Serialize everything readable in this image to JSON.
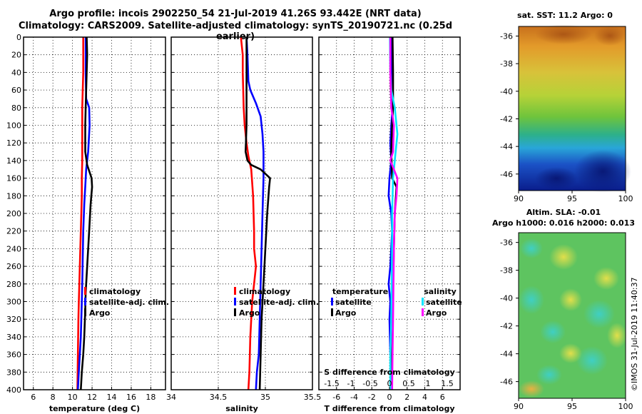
{
  "title_line1": "Argo profile: incois 2902250_54 21-Jul-2019 41.26S 93.442E (NRT data)",
  "title_line2": "Climatology: CARS2009. Satellite-adjusted climatology: synTS_20190721.nc (0.25d earlier)",
  "timestamp_label": "©IMOS 31-Jul-2019 11:40:37",
  "colors": {
    "climatology": "#ff0000",
    "satellite": "#0000ff",
    "argo": "#000000",
    "sal_satellite": "#00e5ff",
    "sal_argo": "#ff00ff"
  },
  "chart_data": [
    {
      "name": "temperature",
      "type": "line",
      "xlabel": "temperature (deg C)",
      "ylabel": "",
      "xlim": [
        5,
        19.5
      ],
      "ylim": [
        400,
        0
      ],
      "xticks": [
        6,
        8,
        10,
        12,
        14,
        16,
        18
      ],
      "xticklabels": [
        "6",
        "8",
        "10",
        "12",
        "14",
        "16",
        "18"
      ],
      "yticks": [
        0,
        20,
        40,
        60,
        80,
        100,
        120,
        140,
        160,
        180,
        200,
        220,
        240,
        260,
        280,
        300,
        320,
        340,
        360,
        380,
        400
      ],
      "yticklabels": [
        "0",
        "20",
        "40",
        "60",
        "80",
        "100",
        "120",
        "140",
        "160",
        "180",
        "200",
        "220",
        "240",
        "260",
        "280",
        "300",
        "320",
        "340",
        "360",
        "380",
        "400"
      ],
      "grid": true,
      "legend": [
        "climatology",
        "satellite-adj. clim.",
        "Argo"
      ],
      "series": [
        {
          "name": "climatology",
          "color": "#ff0000",
          "x": [
            11.1,
            11.1,
            11.0,
            11.0,
            11.0,
            11.0,
            10.95,
            10.95,
            10.9,
            10.85,
            10.8,
            10.75,
            10.7,
            10.65,
            10.6,
            10.55,
            10.5
          ],
          "y": [
            0,
            40,
            80,
            100,
            120,
            140,
            160,
            180,
            200,
            220,
            240,
            260,
            280,
            300,
            320,
            360,
            400
          ]
        },
        {
          "name": "satellite-adj. clim.",
          "color": "#0000ff",
          "x": [
            11.35,
            11.35,
            11.4,
            11.7,
            11.75,
            11.6,
            11.4,
            11.3,
            11.2,
            11.1,
            11.05,
            11.0,
            10.95,
            10.9,
            10.85,
            10.75,
            10.65,
            10.55
          ],
          "y": [
            0,
            40,
            70,
            80,
            100,
            130,
            150,
            170,
            190,
            220,
            250,
            280,
            300,
            320,
            340,
            360,
            380,
            400
          ]
        },
        {
          "name": "Argo",
          "color": "#000000",
          "x": [
            11.45,
            11.5,
            11.45,
            11.4,
            11.35,
            11.3,
            11.3,
            11.5,
            11.95,
            12.0,
            11.85,
            11.7,
            11.55,
            11.45,
            11.35,
            11.3,
            11.2,
            11.1,
            10.95,
            10.85
          ],
          "y": [
            0,
            20,
            40,
            60,
            80,
            100,
            130,
            145,
            160,
            170,
            190,
            220,
            250,
            270,
            290,
            310,
            340,
            360,
            380,
            400
          ]
        }
      ]
    },
    {
      "name": "salinity",
      "type": "line",
      "xlabel": "salinity",
      "ylabel": "",
      "xlim": [
        34,
        35.5
      ],
      "ylim": [
        400,
        0
      ],
      "xticks": [
        34,
        34.5,
        35,
        35.5
      ],
      "xticklabels": [
        "34",
        "34.5",
        "35",
        "35.5"
      ],
      "grid": true,
      "legend": [
        "climatology",
        "satellite-adj. clim.",
        "Argo"
      ],
      "series": [
        {
          "name": "climatology",
          "color": "#ff0000",
          "x": [
            34.74,
            34.76,
            34.76,
            34.77,
            34.78,
            34.8,
            34.82,
            34.85,
            34.87,
            34.88,
            34.88,
            34.9,
            34.88,
            34.86,
            34.84,
            34.83,
            34.82
          ],
          "y": [
            0,
            20,
            40,
            80,
            100,
            120,
            135,
            150,
            180,
            220,
            240,
            260,
            280,
            300,
            340,
            380,
            400
          ]
        },
        {
          "name": "satellite-adj. clim.",
          "color": "#0000ff",
          "x": [
            34.8,
            34.81,
            34.82,
            34.84,
            34.9,
            34.95,
            34.97,
            34.98,
            34.98,
            34.97,
            34.96,
            34.95,
            34.94,
            34.93,
            34.91,
            34.9
          ],
          "y": [
            0,
            20,
            50,
            60,
            75,
            90,
            110,
            130,
            160,
            200,
            240,
            280,
            320,
            360,
            380,
            400
          ]
        },
        {
          "name": "Argo",
          "color": "#000000",
          "x": [
            34.8,
            34.8,
            34.8,
            34.8,
            34.79,
            34.81,
            34.85,
            34.95,
            35.05,
            35.04,
            35.02,
            35.0,
            34.98,
            34.96,
            34.95,
            34.94
          ],
          "y": [
            0,
            40,
            80,
            100,
            130,
            140,
            145,
            150,
            160,
            170,
            200,
            240,
            280,
            320,
            360,
            400
          ]
        }
      ]
    },
    {
      "name": "difference",
      "type": "line",
      "xlabel": "T difference from climatology",
      "xlabel_top": "S difference from climatology",
      "xlim": [
        -8,
        8
      ],
      "ylim": [
        400,
        0
      ],
      "xticks": [
        -6,
        -4,
        -2,
        0,
        2,
        4,
        6
      ],
      "xticklabels": [
        "-6",
        "-4",
        "-2",
        "0",
        "2",
        "4",
        "6"
      ],
      "sticks": [
        -1.5,
        -1,
        -0.5,
        0,
        0.5,
        1,
        1.5
      ],
      "sticklabels": [
        "-1.5",
        "-1",
        "-0.5",
        "0",
        "0.5",
        "1",
        "1.5"
      ],
      "grid": true,
      "legend_temperature_title": "temperature",
      "legend_temperature": [
        "satellite",
        "Argo"
      ],
      "legend_salinity_title": "salinity",
      "legend_salinity": [
        "satellite",
        "Argo"
      ],
      "series": [
        {
          "name": "T satellite",
          "color": "#0000ff",
          "x": [
            0.3,
            0.3,
            0.35,
            0.2,
            0.1,
            0.2,
            0.0,
            -0.1,
            0.2,
            0.3,
            0.1,
            -0.1,
            0.1,
            0.0,
            0.1,
            0.2,
            0.2
          ],
          "y": [
            0,
            40,
            80,
            100,
            120,
            140,
            160,
            180,
            200,
            220,
            260,
            280,
            300,
            320,
            360,
            380,
            400
          ]
        },
        {
          "name": "T Argo",
          "color": "#000000",
          "x": [
            0.35,
            0.4,
            0.4,
            0.3,
            0.2,
            0.25,
            0.3,
            0.8,
            0.6,
            0.5,
            0.4,
            0.35,
            0.3,
            0.3,
            0.3
          ],
          "y": [
            0,
            40,
            80,
            100,
            130,
            145,
            160,
            170,
            200,
            240,
            280,
            320,
            360,
            380,
            400
          ]
        },
        {
          "name": "S satellite",
          "color": "#00e5ff",
          "x": [
            0.05,
            0.1,
            0.2,
            0.6,
            0.9,
            0.6,
            0.4,
            0.3,
            0.3,
            0.25,
            0.2,
            0.15,
            0.1,
            0.1,
            0.1
          ],
          "y": [
            0,
            40,
            60,
            80,
            110,
            140,
            160,
            200,
            240,
            280,
            320,
            340,
            360,
            380,
            400
          ]
        },
        {
          "name": "S Argo",
          "color": "#ff00ff",
          "x": [
            0.1,
            0.1,
            0.2,
            0.5,
            0.4,
            0.1,
            0.9,
            0.8,
            0.6,
            0.5,
            0.45,
            0.4,
            0.35,
            0.3
          ],
          "y": [
            0,
            40,
            80,
            100,
            130,
            140,
            160,
            180,
            200,
            240,
            280,
            320,
            360,
            400
          ]
        }
      ]
    },
    {
      "name": "sst_map",
      "type": "heatmap",
      "title": "sat. SST: 11.2 Argo: 0",
      "xticks": [
        90,
        95,
        100
      ],
      "xticklabels": [
        "90",
        "95",
        "100"
      ],
      "yticks": [
        -36,
        -38,
        -40,
        -42,
        -44,
        -46
      ],
      "yticklabels": [
        "-36",
        "-38",
        "-40",
        "-42",
        "-44",
        "-46"
      ],
      "xlim": [
        90,
        100
      ],
      "ylim": [
        -47.2,
        -35.3
      ]
    },
    {
      "name": "sla_map",
      "type": "heatmap",
      "title_line1": "Altim. SLA: -0.01",
      "title_line2": "Argo h1000: 0.016 h2000: 0.013",
      "xticks": [
        90,
        95,
        100
      ],
      "xticklabels": [
        "90",
        "95",
        "100"
      ],
      "yticks": [
        -36,
        -38,
        -40,
        -42,
        -44,
        -46
      ],
      "yticklabels": [
        "-36",
        "-38",
        "-40",
        "-42",
        "-44",
        "-46"
      ],
      "xlim": [
        90,
        100
      ],
      "ylim": [
        -47.2,
        -35.3
      ]
    }
  ]
}
